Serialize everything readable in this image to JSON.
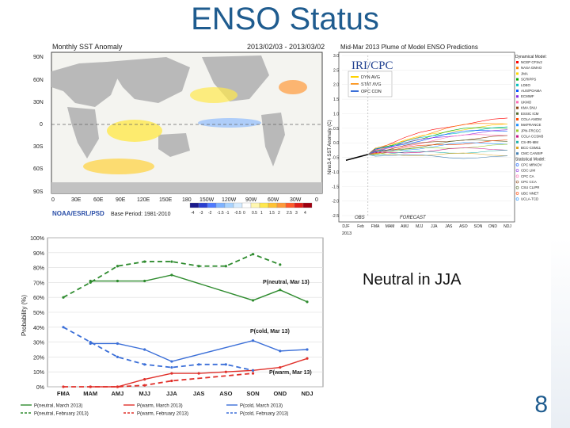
{
  "slide": {
    "title": "ENSO Status",
    "note": "Neutral in JJA",
    "page": "8"
  },
  "sst_map": {
    "title": "Monthly SST Anomaly",
    "period": "2013/02/03 - 2013/03/02",
    "lat_labels": [
      "90N",
      "60N",
      "30N",
      "0",
      "30S",
      "60S",
      "90S"
    ],
    "lon_labels": [
      "0",
      "30E",
      "60E",
      "90E",
      "120E",
      "150E",
      "180",
      "150W",
      "120W",
      "90W",
      "60W",
      "30W",
      "0"
    ],
    "source": "NOAA/ESRL/PSD",
    "base": "Base Period: 1981-2010",
    "scale": [
      "-4",
      "-3",
      "-2",
      "-1.5",
      "-1",
      "-0.5",
      "0",
      "0.5",
      "1",
      "1.5",
      "2",
      "2.5",
      "3",
      "4"
    ]
  },
  "plume": {
    "title": "Mid-Mar 2013 Plume of Model ENSO Predictions",
    "logo": "IRI/CPC",
    "legend_box": [
      "DYN AVG",
      "STAT AVG",
      "OPC CON"
    ],
    "y_label": "Nino3.4 SST Anomaly (C)",
    "y_ticks": [
      "3.0",
      "2.5",
      "2.0",
      "1.5",
      "1.0",
      "0.5",
      "0.0",
      "-0.5",
      "-1.0",
      "-1.5",
      "-2.0",
      "-2.5"
    ],
    "x_ticks": [
      "DJF",
      "Feb",
      "FMA",
      "MAM",
      "AMJ",
      "MJJ",
      "JJA",
      "JAS",
      "ASO",
      "SON",
      "OND",
      "NDJ"
    ],
    "x_sub": "2013",
    "obs": "OBS",
    "forecast": "FORECAST",
    "dyn_title": "Dynamical Model:",
    "dyn_models": [
      "NCEP CFSv2",
      "NASA GMAO",
      "JMA",
      "SCRIPPS",
      "LDEO",
      "AUS/POAMA",
      "ECMWF",
      "UKMO",
      "KMA SNU",
      "ESSIC ICM",
      "COLA ANOM",
      "MetFRANCE",
      "JPN-FRCGC",
      "COLA CCSM3",
      "CS-IRI-MM",
      "BCC-CSM11",
      "CMC CANSIP"
    ],
    "stat_title": "Statistical Model:",
    "stat_models": [
      "CPC MRKOV",
      "CDC LIM",
      "CPC CA",
      "CPC CCA",
      "CSU CLIPR",
      "UBC NNET",
      "UCLA-TCD"
    ]
  },
  "chart_data": {
    "type": "line",
    "categories": [
      "FMA",
      "MAM",
      "AMJ",
      "MJJ",
      "JJA",
      "JAS",
      "ASO",
      "SON",
      "OND",
      "NDJ"
    ],
    "ylim": [
      0,
      100
    ],
    "y_ticks": [
      "0%",
      "10%",
      "20%",
      "30%",
      "40%",
      "50%",
      "60%",
      "70%",
      "80%",
      "90%",
      "100%"
    ],
    "ylabel": "Probability (%)",
    "annotations": [
      "P(neutral, Mar 13)",
      "P(cold, Mar 13)",
      "P(warm, Mar 13)"
    ],
    "series": [
      {
        "name": "P(neutral, March 2013)",
        "color": "#2e8b2e",
        "dash": false,
        "values": [
          null,
          71,
          71,
          71,
          75,
          null,
          null,
          58,
          65,
          57
        ]
      },
      {
        "name": "P(neutral, February 2013)",
        "color": "#2e8b2e",
        "dash": true,
        "values": [
          60,
          70,
          81,
          84,
          84,
          81,
          81,
          89,
          82,
          null
        ]
      },
      {
        "name": "P(warm, March 2013)",
        "color": "#e0302a",
        "dash": false,
        "values": [
          null,
          0,
          0,
          5,
          9,
          9,
          10,
          11,
          13,
          19
        ]
      },
      {
        "name": "P(warm, February 2013)",
        "color": "#e0302a",
        "dash": true,
        "values": [
          0,
          0,
          0,
          1,
          4,
          null,
          null,
          9,
          null,
          null
        ]
      },
      {
        "name": "P(cold, March 2013)",
        "color": "#3b6fd8",
        "dash": false,
        "values": [
          null,
          29,
          29,
          25,
          17,
          null,
          null,
          31,
          24,
          25
        ]
      },
      {
        "name": "P(cold, February 2013)",
        "color": "#3b6fd8",
        "dash": true,
        "values": [
          40,
          30,
          20,
          15,
          13,
          15,
          15,
          11,
          null,
          null
        ]
      }
    ]
  }
}
